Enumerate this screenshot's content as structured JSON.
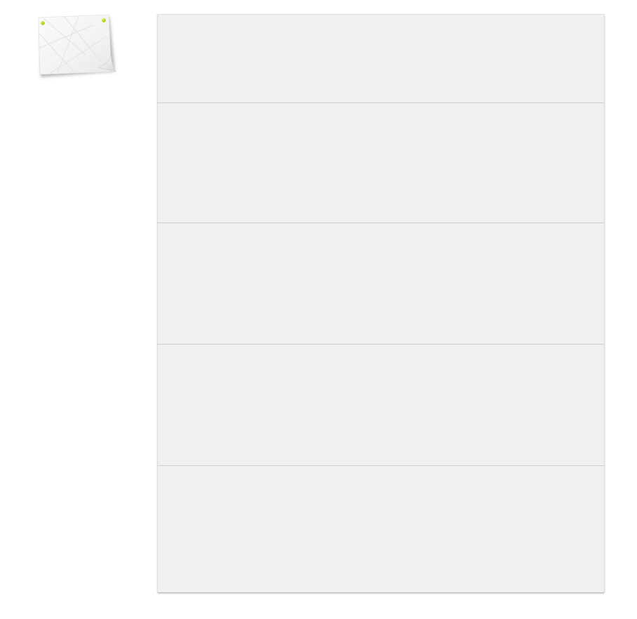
{
  "theme": {
    "background": "#ffffff",
    "panel_color": "#f0f0f0",
    "divider_color": "#cfcfcf",
    "pin_color": "#b5d611"
  },
  "sticky_note": {
    "icon": "pinned-note-icon"
  },
  "panel": {
    "rows": [
      {
        "id": "row-1"
      },
      {
        "id": "row-2"
      },
      {
        "id": "row-3"
      },
      {
        "id": "row-4"
      },
      {
        "id": "row-5"
      }
    ]
  }
}
